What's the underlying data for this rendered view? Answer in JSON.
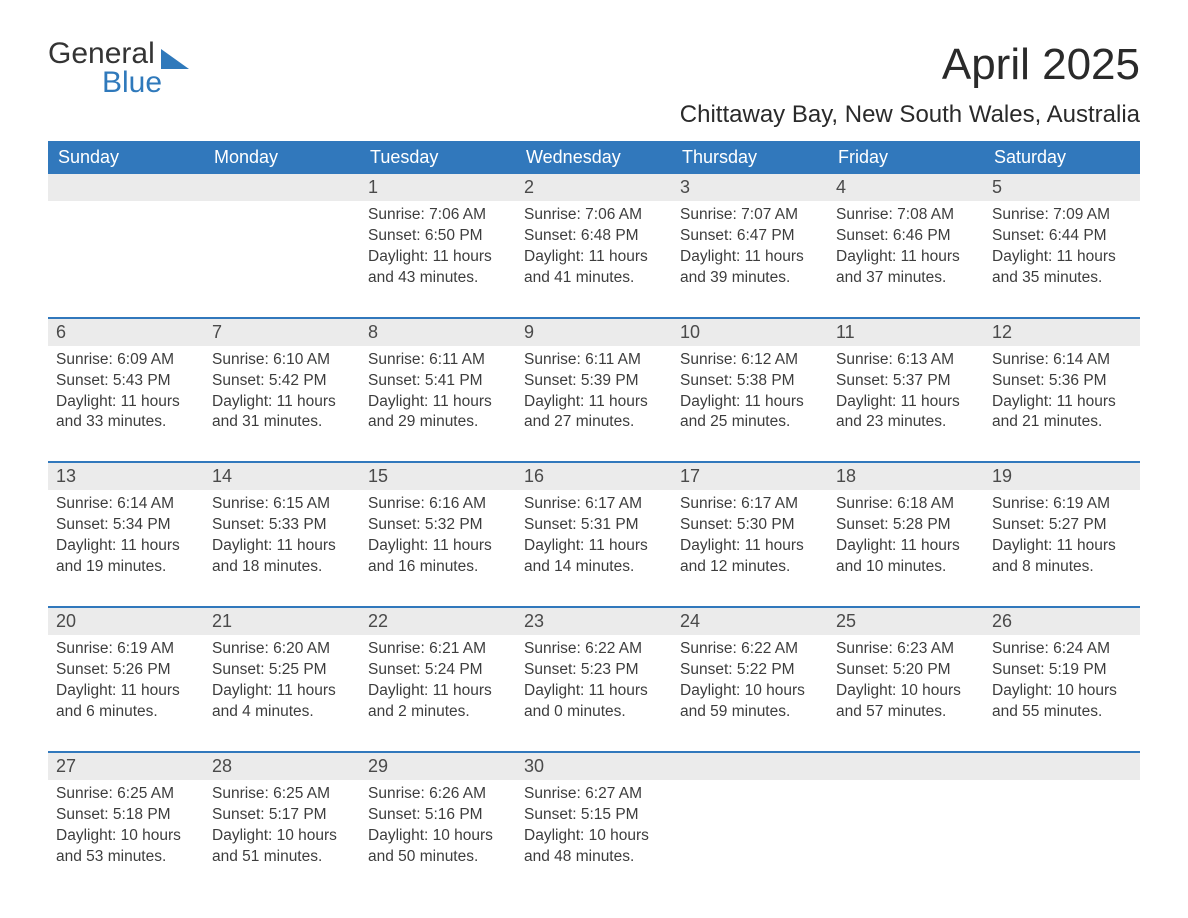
{
  "logo": {
    "word1": "General",
    "word2": "Blue",
    "color_general": "#343434",
    "color_blue": "#2f79bb",
    "triangle_color": "#2f79bb"
  },
  "title": "April 2025",
  "location": "Chittaway Bay, New South Wales, Australia",
  "colors": {
    "header_bg": "#3178bc",
    "header_text": "#ffffff",
    "daynum_bg": "#ebebeb",
    "daynum_text": "#4a4a4a",
    "body_text": "#3d3d3d",
    "row_border": "#3178bc",
    "page_bg": "#ffffff"
  },
  "typography": {
    "title_fontsize": 44,
    "location_fontsize": 24,
    "header_fontsize": 18,
    "daynum_fontsize": 18,
    "cell_fontsize": 15.5,
    "font_family": "Arial"
  },
  "weekdays": [
    "Sunday",
    "Monday",
    "Tuesday",
    "Wednesday",
    "Thursday",
    "Friday",
    "Saturday"
  ],
  "weeks": [
    [
      {
        "day": "",
        "sunrise": "",
        "sunset": "",
        "daylight": ""
      },
      {
        "day": "",
        "sunrise": "",
        "sunset": "",
        "daylight": ""
      },
      {
        "day": "1",
        "sunrise": "Sunrise: 7:06 AM",
        "sunset": "Sunset: 6:50 PM",
        "daylight": "Daylight: 11 hours and 43 minutes."
      },
      {
        "day": "2",
        "sunrise": "Sunrise: 7:06 AM",
        "sunset": "Sunset: 6:48 PM",
        "daylight": "Daylight: 11 hours and 41 minutes."
      },
      {
        "day": "3",
        "sunrise": "Sunrise: 7:07 AM",
        "sunset": "Sunset: 6:47 PM",
        "daylight": "Daylight: 11 hours and 39 minutes."
      },
      {
        "day": "4",
        "sunrise": "Sunrise: 7:08 AM",
        "sunset": "Sunset: 6:46 PM",
        "daylight": "Daylight: 11 hours and 37 minutes."
      },
      {
        "day": "5",
        "sunrise": "Sunrise: 7:09 AM",
        "sunset": "Sunset: 6:44 PM",
        "daylight": "Daylight: 11 hours and 35 minutes."
      }
    ],
    [
      {
        "day": "6",
        "sunrise": "Sunrise: 6:09 AM",
        "sunset": "Sunset: 5:43 PM",
        "daylight": "Daylight: 11 hours and 33 minutes."
      },
      {
        "day": "7",
        "sunrise": "Sunrise: 6:10 AM",
        "sunset": "Sunset: 5:42 PM",
        "daylight": "Daylight: 11 hours and 31 minutes."
      },
      {
        "day": "8",
        "sunrise": "Sunrise: 6:11 AM",
        "sunset": "Sunset: 5:41 PM",
        "daylight": "Daylight: 11 hours and 29 minutes."
      },
      {
        "day": "9",
        "sunrise": "Sunrise: 6:11 AM",
        "sunset": "Sunset: 5:39 PM",
        "daylight": "Daylight: 11 hours and 27 minutes."
      },
      {
        "day": "10",
        "sunrise": "Sunrise: 6:12 AM",
        "sunset": "Sunset: 5:38 PM",
        "daylight": "Daylight: 11 hours and 25 minutes."
      },
      {
        "day": "11",
        "sunrise": "Sunrise: 6:13 AM",
        "sunset": "Sunset: 5:37 PM",
        "daylight": "Daylight: 11 hours and 23 minutes."
      },
      {
        "day": "12",
        "sunrise": "Sunrise: 6:14 AM",
        "sunset": "Sunset: 5:36 PM",
        "daylight": "Daylight: 11 hours and 21 minutes."
      }
    ],
    [
      {
        "day": "13",
        "sunrise": "Sunrise: 6:14 AM",
        "sunset": "Sunset: 5:34 PM",
        "daylight": "Daylight: 11 hours and 19 minutes."
      },
      {
        "day": "14",
        "sunrise": "Sunrise: 6:15 AM",
        "sunset": "Sunset: 5:33 PM",
        "daylight": "Daylight: 11 hours and 18 minutes."
      },
      {
        "day": "15",
        "sunrise": "Sunrise: 6:16 AM",
        "sunset": "Sunset: 5:32 PM",
        "daylight": "Daylight: 11 hours and 16 minutes."
      },
      {
        "day": "16",
        "sunrise": "Sunrise: 6:17 AM",
        "sunset": "Sunset: 5:31 PM",
        "daylight": "Daylight: 11 hours and 14 minutes."
      },
      {
        "day": "17",
        "sunrise": "Sunrise: 6:17 AM",
        "sunset": "Sunset: 5:30 PM",
        "daylight": "Daylight: 11 hours and 12 minutes."
      },
      {
        "day": "18",
        "sunrise": "Sunrise: 6:18 AM",
        "sunset": "Sunset: 5:28 PM",
        "daylight": "Daylight: 11 hours and 10 minutes."
      },
      {
        "day": "19",
        "sunrise": "Sunrise: 6:19 AM",
        "sunset": "Sunset: 5:27 PM",
        "daylight": "Daylight: 11 hours and 8 minutes."
      }
    ],
    [
      {
        "day": "20",
        "sunrise": "Sunrise: 6:19 AM",
        "sunset": "Sunset: 5:26 PM",
        "daylight": "Daylight: 11 hours and 6 minutes."
      },
      {
        "day": "21",
        "sunrise": "Sunrise: 6:20 AM",
        "sunset": "Sunset: 5:25 PM",
        "daylight": "Daylight: 11 hours and 4 minutes."
      },
      {
        "day": "22",
        "sunrise": "Sunrise: 6:21 AM",
        "sunset": "Sunset: 5:24 PM",
        "daylight": "Daylight: 11 hours and 2 minutes."
      },
      {
        "day": "23",
        "sunrise": "Sunrise: 6:22 AM",
        "sunset": "Sunset: 5:23 PM",
        "daylight": "Daylight: 11 hours and 0 minutes."
      },
      {
        "day": "24",
        "sunrise": "Sunrise: 6:22 AM",
        "sunset": "Sunset: 5:22 PM",
        "daylight": "Daylight: 10 hours and 59 minutes."
      },
      {
        "day": "25",
        "sunrise": "Sunrise: 6:23 AM",
        "sunset": "Sunset: 5:20 PM",
        "daylight": "Daylight: 10 hours and 57 minutes."
      },
      {
        "day": "26",
        "sunrise": "Sunrise: 6:24 AM",
        "sunset": "Sunset: 5:19 PM",
        "daylight": "Daylight: 10 hours and 55 minutes."
      }
    ],
    [
      {
        "day": "27",
        "sunrise": "Sunrise: 6:25 AM",
        "sunset": "Sunset: 5:18 PM",
        "daylight": "Daylight: 10 hours and 53 minutes."
      },
      {
        "day": "28",
        "sunrise": "Sunrise: 6:25 AM",
        "sunset": "Sunset: 5:17 PM",
        "daylight": "Daylight: 10 hours and 51 minutes."
      },
      {
        "day": "29",
        "sunrise": "Sunrise: 6:26 AM",
        "sunset": "Sunset: 5:16 PM",
        "daylight": "Daylight: 10 hours and 50 minutes."
      },
      {
        "day": "30",
        "sunrise": "Sunrise: 6:27 AM",
        "sunset": "Sunset: 5:15 PM",
        "daylight": "Daylight: 10 hours and 48 minutes."
      },
      {
        "day": "",
        "sunrise": "",
        "sunset": "",
        "daylight": ""
      },
      {
        "day": "",
        "sunrise": "",
        "sunset": "",
        "daylight": ""
      },
      {
        "day": "",
        "sunrise": "",
        "sunset": "",
        "daylight": ""
      }
    ]
  ]
}
